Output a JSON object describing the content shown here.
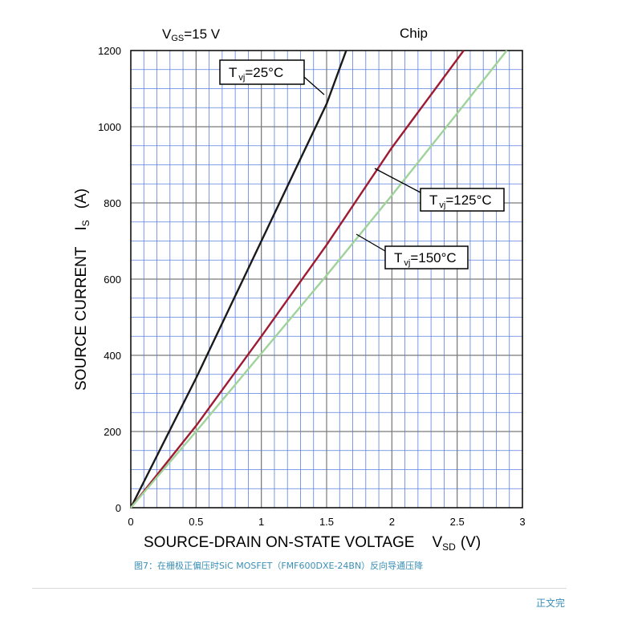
{
  "chart_data": {
    "type": "line",
    "header_left": {
      "prefix": "V",
      "sub": "GS",
      "suffix": "=15 V"
    },
    "header_right": "Chip",
    "xlabel": {
      "main": "SOURCE-DRAIN ON-STATE VOLTAGE",
      "symbol": "V",
      "sub": "SD",
      "unit": "(V)"
    },
    "ylabel": {
      "main": "SOURCE CURRENT",
      "symbol": "I",
      "sub": "S",
      "unit": "(A)"
    },
    "xlim": [
      0,
      3
    ],
    "ylim": [
      0,
      1200
    ],
    "xticks": [
      "0",
      "0.5",
      "1",
      "1.5",
      "2",
      "2.5",
      "3"
    ],
    "yticks": [
      "0",
      "200",
      "400",
      "600",
      "800",
      "1000",
      "1200"
    ],
    "grid": true,
    "series": [
      {
        "name": "25°C",
        "color": "#1a1a1a",
        "x": [
          0,
          0.5,
          1.0,
          1.5,
          1.65
        ],
        "y": [
          0,
          340,
          700,
          1060,
          1200
        ]
      },
      {
        "name": "125°C",
        "color": "#9e1b32",
        "x": [
          0,
          0.5,
          1.0,
          1.5,
          2.0,
          2.55
        ],
        "y": [
          0,
          215,
          450,
          690,
          945,
          1200
        ]
      },
      {
        "name": "150°C",
        "color": "#9fd39a",
        "x": [
          0,
          0.5,
          1.0,
          1.5,
          2.0,
          2.5,
          2.88
        ],
        "y": [
          0,
          200,
          405,
          610,
          820,
          1035,
          1200
        ]
      }
    ],
    "annotations": [
      {
        "prefix": "T",
        "sub": "vj",
        "suffix": "=25°C"
      },
      {
        "prefix": "T",
        "sub": "vj",
        "suffix": "=125°C"
      },
      {
        "prefix": "T",
        "sub": "vj",
        "suffix": "=150°C"
      }
    ]
  },
  "caption": "图7：在栅极正偏压时SiC MOSFET（FMF600DXE-24BN）反向导通压降",
  "footer": {
    "end_text": "正文完"
  }
}
